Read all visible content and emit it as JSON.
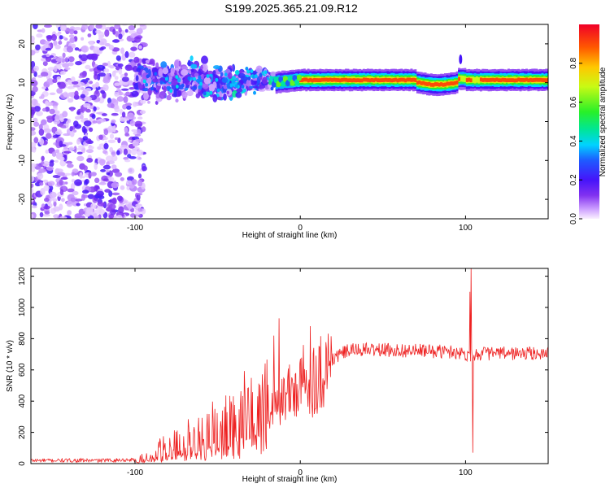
{
  "title": "S199.2025.365.21.09.R12",
  "chart_data": [
    {
      "type": "heatmap",
      "title": "S199.2025.365.21.09.R12",
      "xlabel": "Height of straight line (km)",
      "ylabel": "Frequency (Hz)",
      "xlim": [
        -163,
        150
      ],
      "ylim": [
        -25,
        25
      ],
      "xticks": [
        -100,
        0,
        100
      ],
      "xtick_labels": [
        "-100",
        "0",
        "100"
      ],
      "yticks": [
        -20,
        -10,
        0,
        10,
        20
      ],
      "ytick_labels": [
        "-20",
        "-10",
        "0",
        "10",
        "20"
      ],
      "colorbar": {
        "label": "Normalized spectral amplitude",
        "range": [
          0,
          1
        ],
        "ticks": [
          0.0,
          0.2,
          0.4,
          0.6,
          0.8
        ],
        "tick_labels": [
          "0.0",
          "0.2",
          "0.4",
          "0.6",
          "0.8"
        ]
      },
      "features": {
        "noise_region_x": [
          -163,
          -100
        ],
        "scatter_region_x": [
          -100,
          -15
        ],
        "scatter_center_freq": 10,
        "carrier_band_x": [
          -15,
          150
        ],
        "carrier_center_freq": 11,
        "carrier_peak_amplitude": 0.9
      }
    },
    {
      "type": "line",
      "xlabel": "Height of straight line (km)",
      "ylabel": "SNR (10 * v/v)",
      "xlim": [
        -163,
        150
      ],
      "ylim": [
        0,
        1250
      ],
      "xticks": [
        -100,
        0,
        100
      ],
      "xtick_labels": [
        "-100",
        "0",
        "100"
      ],
      "yticks": [
        0,
        200,
        400,
        600,
        800,
        1000,
        1200
      ],
      "ytick_labels": [
        "0",
        "200",
        "400",
        "600",
        "800",
        "1000",
        "1200"
      ],
      "series": [
        {
          "name": "SNR",
          "color": "#ee2222",
          "profile_x": [
            -163,
            -120,
            -100,
            -95,
            -90,
            -80,
            -70,
            -60,
            -50,
            -40,
            -30,
            -20,
            -15,
            -10,
            -5,
            0,
            5,
            10,
            15,
            20,
            25,
            30,
            40,
            60,
            80,
            95,
            100,
            103,
            106,
            110,
            130,
            150
          ],
          "profile_y": [
            20,
            20,
            25,
            40,
            70,
            110,
            150,
            190,
            240,
            300,
            340,
            380,
            400,
            430,
            460,
            480,
            510,
            560,
            620,
            670,
            705,
            725,
            730,
            725,
            720,
            715,
            700,
            700,
            700,
            705,
            705,
            705
          ],
          "spikes": [
            {
              "x": -13,
              "y": 930
            },
            {
              "x": -16,
              "y": 820
            },
            {
              "x": 6,
              "y": 880
            },
            {
              "x": 2,
              "y": 760
            },
            {
              "x": 103.5,
              "y": 1250
            },
            {
              "x": 104.5,
              "y": 70
            },
            {
              "x": 102.5,
              "y": 1100
            }
          ]
        }
      ]
    }
  ]
}
